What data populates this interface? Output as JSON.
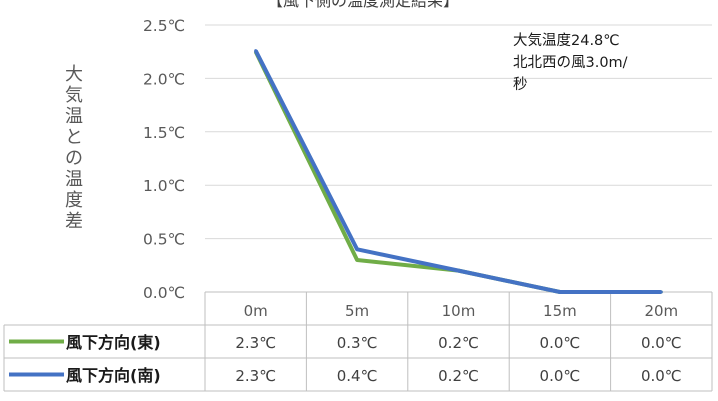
{
  "chart_data": {
    "type": "line",
    "title": "【風下側の温度測定結果】",
    "ylabel": "大気温との温度差",
    "categories": [
      "0m",
      "5m",
      "10m",
      "15m",
      "20m"
    ],
    "y_tick_labels": [
      "2.5℃",
      "2.0℃",
      "1.5℃",
      "1.0℃",
      "0.5℃",
      "0.0℃"
    ],
    "ylim": [
      0,
      2.5
    ],
    "series": [
      {
        "name": "風下方向(東)",
        "color": "#70ad47",
        "values": [
          2.25,
          0.3,
          0.2,
          0.0,
          0.0
        ],
        "table": [
          "2.3℃",
          "0.3℃",
          "0.2℃",
          "0.0℃",
          "0.0℃"
        ]
      },
      {
        "name": "風下方向(南)",
        "color": "#4472c4",
        "values": [
          2.26,
          0.4,
          0.2,
          0.0,
          0.0
        ],
        "table": [
          "2.3℃",
          "0.4℃",
          "0.2℃",
          "0.0℃",
          "0.0℃"
        ]
      }
    ],
    "annotation": [
      "大気温度24.8℃",
      "北北西の風3.0m/",
      "秒"
    ],
    "grid": true,
    "legend": "data-table"
  }
}
